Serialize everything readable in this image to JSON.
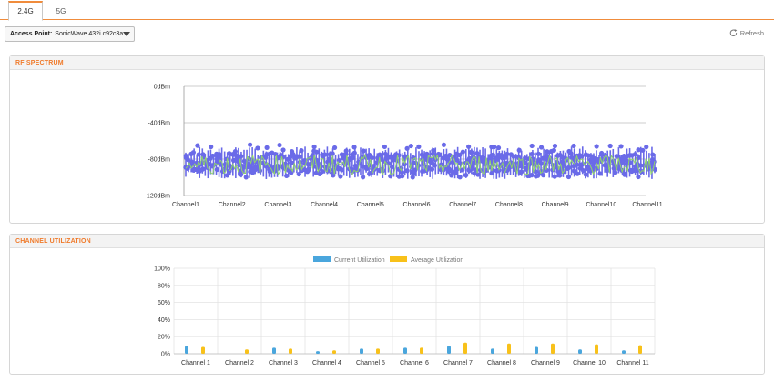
{
  "tabs": [
    {
      "label": "2.4G",
      "active": true
    },
    {
      "label": "5G",
      "active": false
    }
  ],
  "toolbar": {
    "access_point_label": "Access Point:",
    "access_point_value": "SonicWave 432i c92c3a",
    "refresh_label": "Refresh"
  },
  "rf_spectrum": {
    "title": "RF SPECTRUM",
    "chart_data": {
      "type": "scatter",
      "ylabels": [
        "0dBm",
        "-40dBm",
        "-80dBm",
        "-120dBm"
      ],
      "yticks": [
        0,
        -40,
        -80,
        -120
      ],
      "ylim": [
        -120,
        0
      ],
      "categories": [
        "Channel1",
        "Channel2",
        "Channel3",
        "Channel4",
        "Channel5",
        "Channel6",
        "Channel7",
        "Channel8",
        "Channel9",
        "Channel10",
        "Channel11"
      ],
      "grid": true,
      "series": [
        {
          "color": "#6a6ae8",
          "style": "scatter",
          "band": [
            -100,
            -64
          ],
          "center": -84
        },
        {
          "color": "#8fd46a",
          "style": "line",
          "band": [
            -96,
            -74
          ],
          "center": -86
        }
      ]
    }
  },
  "channel_utilization": {
    "title": "CHANNEL UTILIZATION",
    "chart_data": {
      "type": "bar",
      "categories": [
        "Channel 1",
        "Channel 2",
        "Channel 3",
        "Channel 4",
        "Channel 5",
        "Channel 6",
        "Channel 7",
        "Channel 8",
        "Channel 9",
        "Channel 10",
        "Channel 11"
      ],
      "ylabels": [
        "100%",
        "80%",
        "60%",
        "40%",
        "20%",
        "0%"
      ],
      "ylim": [
        0,
        100
      ],
      "legend_position": "top",
      "series": [
        {
          "name": "Current Utilization",
          "color": "#4aa6dd",
          "values": [
            9,
            0,
            7,
            3,
            6,
            7,
            9,
            6,
            8,
            5,
            4
          ]
        },
        {
          "name": "Average Utilization",
          "color": "#f8c11a",
          "values": [
            8,
            5,
            6,
            4,
            6,
            7,
            13,
            12,
            12,
            11,
            10
          ]
        }
      ]
    }
  }
}
